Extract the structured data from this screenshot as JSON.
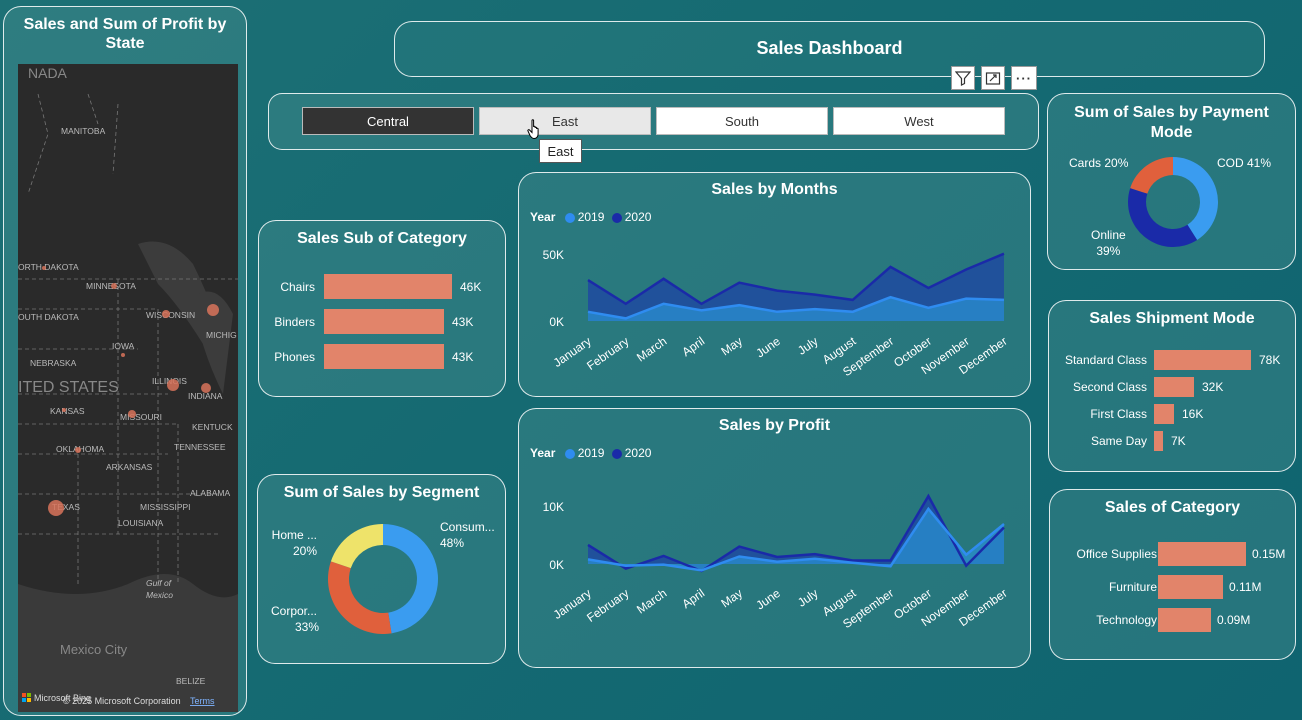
{
  "header": {
    "title": "Sales Dashboard"
  },
  "map": {
    "title": "Sales and Sum of Profit by State",
    "labels": [
      "NADA",
      "MANITOBA",
      "ORTH DAKOTA",
      "MINNESOTA",
      "OUTH DAKOTA",
      "WISCONSIN",
      "MICHIG",
      "IOWA",
      "NEBRASKA",
      "ILLINOIS",
      "ITED STATES",
      "INDIANA",
      "KANSAS",
      "MISSOURI",
      "KENTUCK",
      "OKLAHOMA",
      "TENNESSEE",
      "ARKANSAS",
      "ALABAMA",
      "TEXAS",
      "MISSISSIPPI",
      "LOUISIANA",
      "Gulf of",
      "Mexico",
      "Mexico City",
      "BELIZE"
    ],
    "footer_brand": "Microsoft Bing",
    "footer_copyright": "© 2025 Microsoft Corporation",
    "footer_terms": "Terms"
  },
  "toolbar": {
    "filter_icon": "filter-icon",
    "expand_icon": "focus-mode-icon",
    "more_icon": "more-options-icon",
    "more_label": "···"
  },
  "slicer": {
    "options": [
      "Central",
      "East",
      "South",
      "West"
    ],
    "selected": "Central",
    "hovered": "East",
    "tooltip": "East"
  },
  "sub_category": {
    "title": "Sales Sub of Category",
    "items": [
      {
        "label": "Chairs",
        "value": 46,
        "value_label": "46K"
      },
      {
        "label": "Binders",
        "value": 43,
        "value_label": "43K"
      },
      {
        "label": "Phones",
        "value": 43,
        "value_label": "43K"
      }
    ]
  },
  "months_chart": {
    "title": "Sales by Months",
    "legend_title": "Year",
    "series_names": [
      "2019",
      "2020"
    ],
    "yticks": [
      "50K",
      "0K"
    ],
    "months": [
      "January",
      "February",
      "March",
      "April",
      "May",
      "June",
      "July",
      "August",
      "September",
      "October",
      "November",
      "December"
    ]
  },
  "profit_chart": {
    "title": "Sales by Profit",
    "legend_title": "Year",
    "series_names": [
      "2019",
      "2020"
    ],
    "yticks": [
      "10K",
      "0K"
    ],
    "months": [
      "January",
      "February",
      "March",
      "April",
      "May",
      "June",
      "July",
      "August",
      "September",
      "October",
      "November",
      "December"
    ]
  },
  "segment": {
    "title": "Sum of Sales by Segment",
    "labels": [
      {
        "name": "Consum...",
        "pct": "48%"
      },
      {
        "name": "Corpor...",
        "pct": "33%"
      },
      {
        "name": "Home ...",
        "pct": "20%"
      }
    ]
  },
  "payment": {
    "title": "Sum of Sales by Payment Mode",
    "title_line1": "Sum of Sales by Payment",
    "title_line2": "Mode",
    "labels": [
      {
        "name": "COD",
        "pct": "41%",
        "text": "COD 41%"
      },
      {
        "name": "Online",
        "pct": "39%"
      },
      {
        "name": "Cards",
        "pct": "20%",
        "text": "Cards 20%"
      }
    ]
  },
  "shipment": {
    "title": "Sales Shipment Mode",
    "items": [
      {
        "label": "Standard Class",
        "value": 78,
        "value_label": "78K"
      },
      {
        "label": "Second Class",
        "value": 32,
        "value_label": "32K"
      },
      {
        "label": "First Class",
        "value": 16,
        "value_label": "16K"
      },
      {
        "label": "Same Day",
        "value": 7,
        "value_label": "7K"
      }
    ]
  },
  "category": {
    "title": "Sales of Category",
    "items": [
      {
        "label": "Office Supplies",
        "value": 0.15,
        "value_label": "0.15M"
      },
      {
        "label": "Furniture",
        "value": 0.11,
        "value_label": "0.11M"
      },
      {
        "label": "Technology",
        "value": 0.09,
        "value_label": "0.09M"
      }
    ]
  },
  "colors": {
    "bar": "#e2846a",
    "series_2019": "#2f8cf0",
    "series_2020": "#1a2aa8",
    "donut_blue": "#3a9cf0",
    "donut_red": "#e0603c",
    "donut_yellow": "#eee36a",
    "donut_navy": "#1a2aa8"
  },
  "chart_data": [
    {
      "type": "area",
      "title": "Sales by Months",
      "categories": [
        "January",
        "February",
        "March",
        "April",
        "May",
        "June",
        "July",
        "August",
        "September",
        "October",
        "November",
        "December"
      ],
      "series": [
        {
          "name": "2019",
          "values": [
            7,
            2,
            13,
            8,
            12,
            7,
            9,
            7,
            18,
            10,
            17,
            16
          ]
        },
        {
          "name": "2020",
          "values": [
            31,
            13,
            32,
            13,
            29,
            23,
            20,
            16,
            41,
            25,
            39,
            51
          ]
        }
      ],
      "ylim": [
        0,
        50
      ]
    },
    {
      "type": "area",
      "title": "Sales by Profit",
      "categories": [
        "January",
        "February",
        "March",
        "April",
        "May",
        "June",
        "July",
        "August",
        "September",
        "October",
        "November",
        "December"
      ],
      "series": [
        {
          "name": "2019",
          "values": [
            0.8,
            -0.3,
            -0.1,
            -1.1,
            1.3,
            0.4,
            0.9,
            0.2,
            -0.4,
            9.5,
            1.6,
            6.9
          ]
        },
        {
          "name": "2020",
          "values": [
            3.3,
            -0.8,
            1.4,
            -1.2,
            3,
            1.2,
            1.7,
            0.6,
            0.6,
            11.7,
            -0.3,
            6.3
          ]
        }
      ],
      "ylim": [
        -2,
        12
      ]
    },
    {
      "type": "pie",
      "title": "Sum of Sales by Segment",
      "categories": [
        "Consum...",
        "Corpor...",
        "Home ..."
      ],
      "values": [
        48,
        33,
        20
      ]
    },
    {
      "type": "pie",
      "title": "Sum of Sales by Payment Mode",
      "categories": [
        "COD",
        "Online",
        "Cards"
      ],
      "values": [
        41,
        39,
        20
      ]
    }
  ]
}
